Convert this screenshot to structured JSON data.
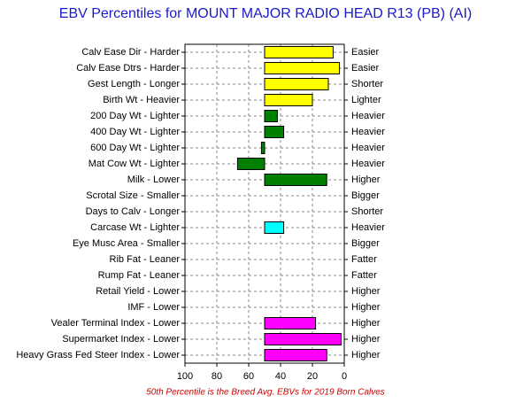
{
  "chart_data": {
    "type": "bar",
    "orientation": "horizontal",
    "title": "EBV Percentiles for MOUNT MAJOR RADIO HEAD R13 (PB) (AI)",
    "footnote": "50th Percentile is the Breed Avg. EBVs for 2019 Born Calves",
    "categories": [
      "Calv Ease Dir - Harder",
      "Calv Ease Dtrs - Harder",
      "Gest Length - Longer",
      "Birth Wt - Heavier",
      "200 Day Wt - Lighter",
      "400 Day Wt - Lighter",
      "600 Day Wt - Lighter",
      "Mat Cow Wt - Lighter",
      "Milk - Lower",
      "Scrotal Size - Smaller",
      "Days to Calv - Longer",
      "Carcase Wt - Lighter",
      "Eye Musc Area - Smaller",
      "Rib Fat - Leaner",
      "Rump Fat - Leaner",
      "Retail Yield - Lower",
      "IMF - Lower",
      "Vealer Terminal Index - Lower",
      "Supermarket Index - Lower",
      "Heavy Grass Fed Steer Index - Lower"
    ],
    "right_labels": [
      "Easier",
      "Easier",
      "Shorter",
      "Lighter",
      "Heavier",
      "Heavier",
      "Heavier",
      "Heavier",
      "Higher",
      "Bigger",
      "Shorter",
      "Heavier",
      "Bigger",
      "Fatter",
      "Fatter",
      "Higher",
      "Higher",
      "Higher",
      "Higher",
      "Higher"
    ],
    "values": [
      7,
      3,
      10,
      20,
      42,
      38,
      52,
      67,
      11,
      null,
      null,
      38,
      null,
      null,
      null,
      null,
      null,
      18,
      2,
      11
    ],
    "colors": [
      "#ffff00",
      "#ffff00",
      "#ffff00",
      "#ffff00",
      "#008000",
      "#008000",
      "#008000",
      "#008000",
      "#008000",
      "#008000",
      "#008000",
      "#00ffff",
      "#00ffff",
      "#00ffff",
      "#00ffff",
      "#00ffff",
      "#00ffff",
      "#ff00ff",
      "#ff00ff",
      "#ff00ff"
    ],
    "base": 50,
    "xlim": [
      100,
      0
    ],
    "xticks": [
      100,
      80,
      60,
      40,
      20,
      0
    ],
    "grid": true
  }
}
